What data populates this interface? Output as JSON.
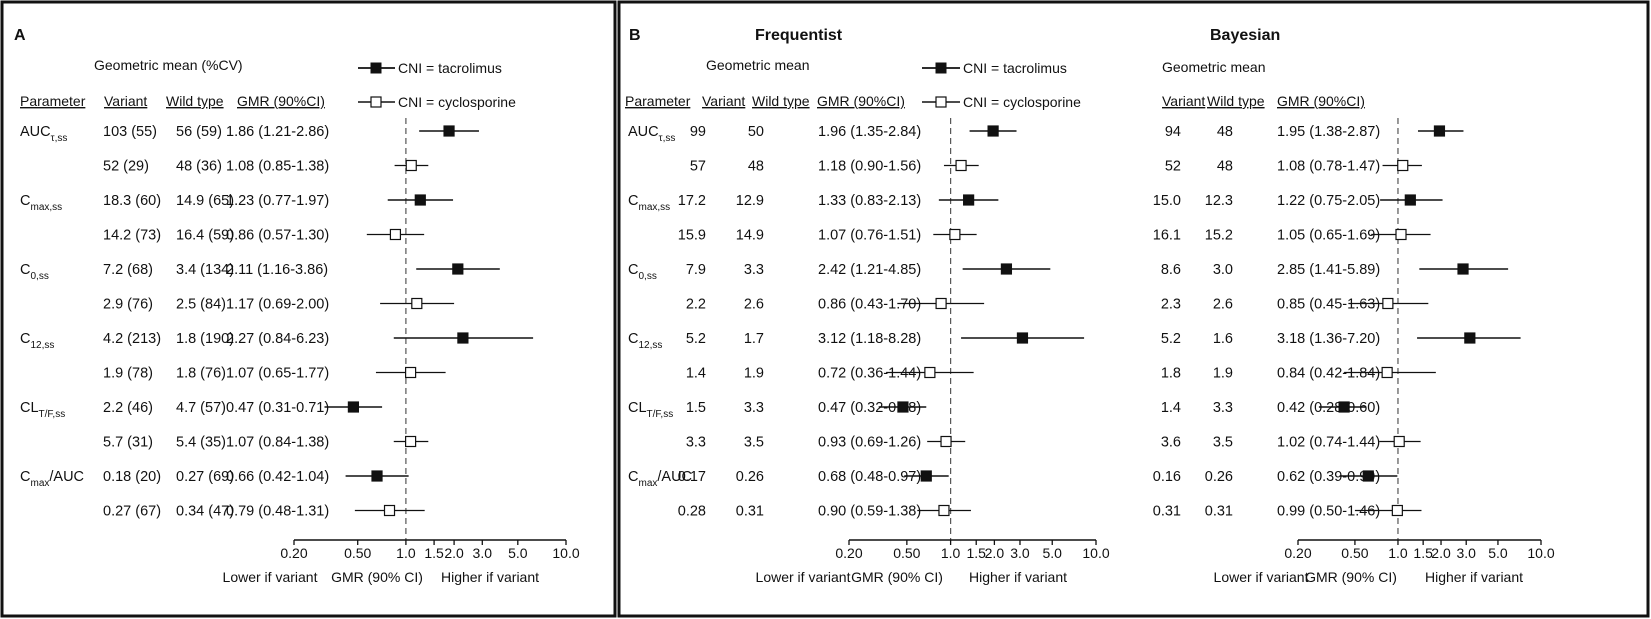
{
  "legend": {
    "tacrolimus": "CNI = tacrolimus",
    "cyclosporine": "CNI = cyclosporine",
    "colors": {
      "tacrolimus": "#111111",
      "cyclosporine": "#ffffff"
    }
  },
  "chart_data": [
    {
      "type": "forest",
      "panel": "A",
      "title": "",
      "header": {
        "group": "Geometric mean (%CV)",
        "parameter": "Parameter",
        "variant": "Variant",
        "wild": "Wild type",
        "gmr": "GMR (90%CI)"
      },
      "xscale": "log",
      "xlim": [
        0.2,
        10.0
      ],
      "reference_line": 1.0,
      "xticks": [
        "0.20",
        "0.50",
        "1.0",
        "1.5",
        "2.0",
        "3.0",
        "5.0",
        "10.0"
      ],
      "xlabel_left": "Lower if variant",
      "xlabel_center": "GMR (90% CI)",
      "xlabel_right": "Higher if variant",
      "rows": [
        {
          "param": "AUC",
          "sub": "τ,ss",
          "cni": "tacrolimus",
          "variant": "103 (55)",
          "wild": "56 (59)",
          "gmr_text": "1.86 (1.21-2.86)",
          "gmr": 1.86,
          "lo": 1.21,
          "hi": 2.86
        },
        {
          "param": "",
          "sub": "",
          "cni": "cyclosporine",
          "variant": "52 (29)",
          "wild": "48 (36)",
          "gmr_text": "1.08 (0.85-1.38)",
          "gmr": 1.08,
          "lo": 0.85,
          "hi": 1.38
        },
        {
          "param": "C",
          "sub": "max,ss",
          "cni": "tacrolimus",
          "variant": "18.3 (60)",
          "wild": "14.9 (65)",
          "gmr_text": "1.23 (0.77-1.97)",
          "gmr": 1.23,
          "lo": 0.77,
          "hi": 1.97
        },
        {
          "param": "",
          "sub": "",
          "cni": "cyclosporine",
          "variant": "14.2 (73)",
          "wild": "16.4 (59)",
          "gmr_text": "0.86 (0.57-1.30)",
          "gmr": 0.86,
          "lo": 0.57,
          "hi": 1.3
        },
        {
          "param": "C",
          "sub": "0,ss",
          "cni": "tacrolimus",
          "variant": "7.2 (68)",
          "wild": "3.4 (134)",
          "gmr_text": "2.11 (1.16-3.86)",
          "gmr": 2.11,
          "lo": 1.16,
          "hi": 3.86
        },
        {
          "param": "",
          "sub": "",
          "cni": "cyclosporine",
          "variant": "2.9 (76)",
          "wild": "2.5 (84)",
          "gmr_text": "1.17 (0.69-2.00)",
          "gmr": 1.17,
          "lo": 0.69,
          "hi": 2.0
        },
        {
          "param": "C",
          "sub": "12,ss",
          "cni": "tacrolimus",
          "variant": "4.2 (213)",
          "wild": "1.8 (190)",
          "gmr_text": "2.27 (0.84-6.23)",
          "gmr": 2.27,
          "lo": 0.84,
          "hi": 6.23
        },
        {
          "param": "",
          "sub": "",
          "cni": "cyclosporine",
          "variant": "1.9 (78)",
          "wild": "1.8 (76)",
          "gmr_text": "1.07 (0.65-1.77)",
          "gmr": 1.07,
          "lo": 0.65,
          "hi": 1.77
        },
        {
          "param": "CL",
          "sub": "T/F,ss",
          "cni": "tacrolimus",
          "variant": "2.2 (46)",
          "wild": "4.7 (57)",
          "gmr_text": "0.47 (0.31-0.71)",
          "gmr": 0.47,
          "lo": 0.31,
          "hi": 0.71
        },
        {
          "param": "",
          "sub": "",
          "cni": "cyclosporine",
          "variant": "5.7 (31)",
          "wild": "5.4 (35)",
          "gmr_text": "1.07 (0.84-1.38)",
          "gmr": 1.07,
          "lo": 0.84,
          "hi": 1.38
        },
        {
          "param": "C",
          "sub": "max",
          "suffix": "/AUC",
          "cni": "tacrolimus",
          "variant": "0.18 (20)",
          "wild": "0.27 (69)",
          "gmr_text": "0.66 (0.42-1.04)",
          "gmr": 0.66,
          "lo": 0.42,
          "hi": 1.04
        },
        {
          "param": "",
          "sub": "",
          "cni": "cyclosporine",
          "variant": "0.27 (67)",
          "wild": "0.34 (47)",
          "gmr_text": "0.79 (0.48-1.31)",
          "gmr": 0.79,
          "lo": 0.48,
          "hi": 1.31
        }
      ]
    },
    {
      "type": "forest",
      "panel": "B",
      "title": "Frequentist",
      "header": {
        "group": "Geometric mean",
        "parameter": "Parameter",
        "variant": "Variant",
        "wild": "Wild type",
        "gmr": "GMR (90%CI)"
      },
      "xscale": "log",
      "xlim": [
        0.2,
        10.0
      ],
      "reference_line": 1.0,
      "xticks": [
        "0.20",
        "0.50",
        "1.0",
        "1.5",
        "2.0",
        "3.0",
        "5.0",
        "10.0"
      ],
      "xlabel_left": "Lower if variant",
      "xlabel_center": "GMR (90% CI)",
      "xlabel_right": "Higher if variant",
      "rows": [
        {
          "param": "AUC",
          "sub": "τ,ss",
          "cni": "tacrolimus",
          "variant": "99",
          "wild": "50",
          "gmr_text": "1.96 (1.35-2.84)",
          "gmr": 1.96,
          "lo": 1.35,
          "hi": 2.84
        },
        {
          "param": "",
          "sub": "",
          "cni": "cyclosporine",
          "variant": "57",
          "wild": "48",
          "gmr_text": "1.18 (0.90-1.56)",
          "gmr": 1.18,
          "lo": 0.9,
          "hi": 1.56
        },
        {
          "param": "C",
          "sub": "max,ss",
          "cni": "tacrolimus",
          "variant": "17.2",
          "wild": "12.9",
          "gmr_text": "1.33 (0.83-2.13)",
          "gmr": 1.33,
          "lo": 0.83,
          "hi": 2.13
        },
        {
          "param": "",
          "sub": "",
          "cni": "cyclosporine",
          "variant": "15.9",
          "wild": "14.9",
          "gmr_text": "1.07 (0.76-1.51)",
          "gmr": 1.07,
          "lo": 0.76,
          "hi": 1.51
        },
        {
          "param": "C",
          "sub": "0,ss",
          "cni": "tacrolimus",
          "variant": "7.9",
          "wild": "3.3",
          "gmr_text": "2.42 (1.21-4.85)",
          "gmr": 2.42,
          "lo": 1.21,
          "hi": 4.85
        },
        {
          "param": "",
          "sub": "",
          "cni": "cyclosporine",
          "variant": "2.2",
          "wild": "2.6",
          "gmr_text": "0.86 (0.43-1.70)",
          "gmr": 0.86,
          "lo": 0.43,
          "hi": 1.7
        },
        {
          "param": "C",
          "sub": "12,ss",
          "cni": "tacrolimus",
          "variant": "5.2",
          "wild": "1.7",
          "gmr_text": "3.12 (1.18-8.28)",
          "gmr": 3.12,
          "lo": 1.18,
          "hi": 8.28
        },
        {
          "param": "",
          "sub": "",
          "cni": "cyclosporine",
          "variant": "1.4",
          "wild": "1.9",
          "gmr_text": "0.72 (0.36-1.44)",
          "gmr": 0.72,
          "lo": 0.36,
          "hi": 1.44
        },
        {
          "param": "CL",
          "sub": "T/F,ss",
          "cni": "tacrolimus",
          "variant": "1.5",
          "wild": "3.3",
          "gmr_text": "0.47 (0.32-0.68)",
          "gmr": 0.47,
          "lo": 0.32,
          "hi": 0.68
        },
        {
          "param": "",
          "sub": "",
          "cni": "cyclosporine",
          "variant": "3.3",
          "wild": "3.5",
          "gmr_text": "0.93 (0.69-1.26)",
          "gmr": 0.93,
          "lo": 0.69,
          "hi": 1.26
        },
        {
          "param": "C",
          "sub": "max",
          "suffix": "/AUC",
          "cni": "tacrolimus",
          "variant": "0.17",
          "wild": "0.26",
          "gmr_text": "0.68 (0.48-0.97)",
          "gmr": 0.68,
          "lo": 0.48,
          "hi": 0.97
        },
        {
          "param": "",
          "sub": "",
          "cni": "cyclosporine",
          "variant": "0.28",
          "wild": "0.31",
          "gmr_text": "0.90 (0.59-1.38)",
          "gmr": 0.9,
          "lo": 0.59,
          "hi": 1.38
        }
      ]
    },
    {
      "type": "forest",
      "panel": "",
      "title": "Bayesian",
      "header": {
        "group": "Geometric mean",
        "variant": "Variant",
        "wild": "Wild type",
        "gmr": "GMR (90%CI)"
      },
      "xscale": "log",
      "xlim": [
        0.2,
        10.0
      ],
      "reference_line": 1.0,
      "xticks": [
        "0.20",
        "0.50",
        "1.0",
        "1.5",
        "2.0",
        "3.0",
        "5.0",
        "10.0"
      ],
      "xlabel_left": "Lower if variant",
      "xlabel_center": "GMR (90% CI)",
      "xlabel_right": "Higher if variant",
      "rows": [
        {
          "cni": "tacrolimus",
          "variant": "94",
          "wild": "48",
          "gmr_text": "1.95 (1.38-2.87)",
          "gmr": 1.95,
          "lo": 1.38,
          "hi": 2.87
        },
        {
          "cni": "cyclosporine",
          "variant": "52",
          "wild": "48",
          "gmr_text": "1.08 (0.78-1.47)",
          "gmr": 1.08,
          "lo": 0.78,
          "hi": 1.47
        },
        {
          "cni": "tacrolimus",
          "variant": "15.0",
          "wild": "12.3",
          "gmr_text": "1.22 (0.75-2.05)",
          "gmr": 1.22,
          "lo": 0.75,
          "hi": 2.05
        },
        {
          "cni": "cyclosporine",
          "variant": "16.1",
          "wild": "15.2",
          "gmr_text": "1.05 (0.65-1.69)",
          "gmr": 1.05,
          "lo": 0.65,
          "hi": 1.69
        },
        {
          "cni": "tacrolimus",
          "variant": "8.6",
          "wild": "3.0",
          "gmr_text": "2.85 (1.41-5.89)",
          "gmr": 2.85,
          "lo": 1.41,
          "hi": 5.89
        },
        {
          "cni": "cyclosporine",
          "variant": "2.3",
          "wild": "2.6",
          "gmr_text": "0.85 (0.45-1.63)",
          "gmr": 0.85,
          "lo": 0.45,
          "hi": 1.63
        },
        {
          "cni": "tacrolimus",
          "variant": "5.2",
          "wild": "1.6",
          "gmr_text": "3.18 (1.36-7.20)",
          "gmr": 3.18,
          "lo": 1.36,
          "hi": 7.2
        },
        {
          "cni": "cyclosporine",
          "variant": "1.8",
          "wild": "1.9",
          "gmr_text": "0.84 (0.42-1.84)",
          "gmr": 0.84,
          "lo": 0.42,
          "hi": 1.84
        },
        {
          "cni": "tacrolimus",
          "variant": "1.4",
          "wild": "3.3",
          "gmr_text": "0.42 (0.28-0.60)",
          "gmr": 0.42,
          "lo": 0.28,
          "hi": 0.6
        },
        {
          "cni": "cyclosporine",
          "variant": "3.6",
          "wild": "3.5",
          "gmr_text": "1.02 (0.74-1.44)",
          "gmr": 1.02,
          "lo": 0.74,
          "hi": 1.44
        },
        {
          "cni": "tacrolimus",
          "variant": "0.16",
          "wild": "0.26",
          "gmr_text": "0.62 (0.39-0.99)",
          "gmr": 0.62,
          "lo": 0.39,
          "hi": 0.99
        },
        {
          "cni": "cyclosporine",
          "variant": "0.31",
          "wild": "0.31",
          "gmr_text": "0.99 (0.50-1.46)",
          "gmr": 0.99,
          "lo": 0.5,
          "hi": 1.46
        }
      ]
    }
  ]
}
